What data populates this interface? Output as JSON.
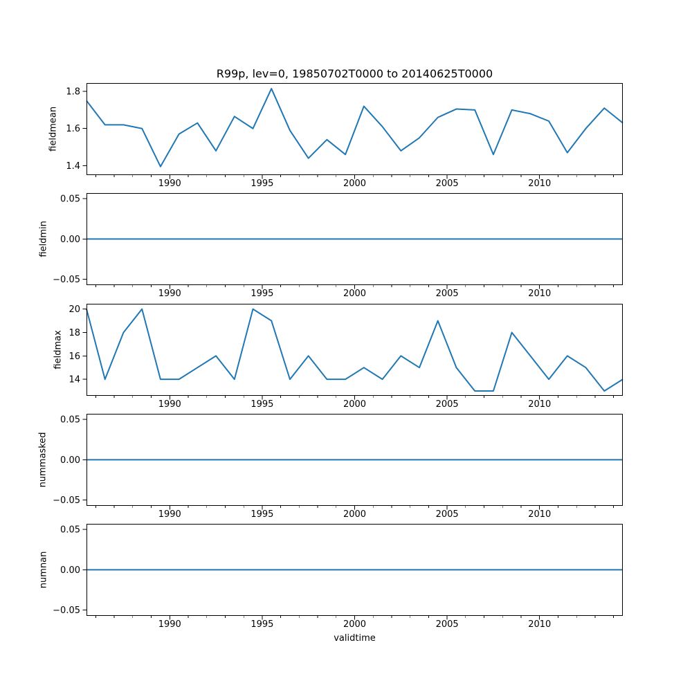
{
  "title": "R99p, lev=0, 19850702T0000 to 20140625T0000",
  "xlabel": "validtime",
  "line_color": "#1f77b4",
  "axis_color": "#000000",
  "chart_data": {
    "type": "line",
    "title": "R99p, lev=0, 19850702T0000 to 20140625T0000",
    "xlabel": "validtime",
    "legend": "none",
    "grid": false,
    "xlim": [
      1985.5,
      2014.5
    ],
    "x_ticks": [
      1990,
      1995,
      2000,
      2005,
      2010
    ],
    "x_tick_labels": [
      "1990",
      "1995",
      "2000",
      "2005",
      "2010"
    ],
    "x_minor_tick_interval": 1,
    "x": [
      1985.5,
      1986.5,
      1987.5,
      1988.5,
      1989.5,
      1990.5,
      1991.5,
      1992.5,
      1993.5,
      1994.5,
      1995.5,
      1996.5,
      1997.5,
      1998.5,
      1999.5,
      2000.5,
      2001.5,
      2002.5,
      2003.5,
      2004.5,
      2005.5,
      2006.5,
      2007.5,
      2008.5,
      2009.5,
      2010.5,
      2011.5,
      2012.5,
      2013.5,
      2014.5
    ],
    "subplots": [
      {
        "ylabel": "fieldmean",
        "y": [
          1.75,
          1.62,
          1.62,
          1.6,
          1.395,
          1.57,
          1.63,
          1.48,
          1.665,
          1.6,
          1.815,
          1.59,
          1.44,
          1.54,
          1.46,
          1.72,
          1.61,
          1.48,
          1.55,
          1.66,
          1.705,
          1.7,
          1.46,
          1.7,
          1.68,
          1.64,
          1.47,
          1.6,
          1.71,
          1.63
        ],
        "ylim": [
          1.35,
          1.845
        ],
        "y_ticks": [
          1.4,
          1.6,
          1.8
        ],
        "y_tick_labels": [
          "1.4",
          "1.6",
          "1.8"
        ]
      },
      {
        "ylabel": "fieldmin",
        "y": [
          0,
          0,
          0,
          0,
          0,
          0,
          0,
          0,
          0,
          0,
          0,
          0,
          0,
          0,
          0,
          0,
          0,
          0,
          0,
          0,
          0,
          0,
          0,
          0,
          0,
          0,
          0,
          0,
          0,
          0
        ],
        "ylim": [
          -0.057,
          0.057
        ],
        "y_ticks": [
          -0.05,
          0,
          0.05
        ],
        "y_tick_labels": [
          "−0.05",
          "0.00",
          "0.05"
        ]
      },
      {
        "ylabel": "fieldmax",
        "y": [
          20,
          14,
          18,
          20,
          14,
          14,
          15,
          16,
          14,
          20,
          19,
          14,
          16,
          14,
          14,
          15,
          14,
          16,
          15,
          19,
          15,
          13,
          13,
          18,
          16,
          14,
          16,
          15,
          13,
          14
        ],
        "ylim": [
          12.6,
          20.45
        ],
        "y_ticks": [
          14,
          16,
          18,
          20
        ],
        "y_tick_labels": [
          "14",
          "16",
          "18",
          "20"
        ]
      },
      {
        "ylabel": "nummasked",
        "y": [
          0,
          0,
          0,
          0,
          0,
          0,
          0,
          0,
          0,
          0,
          0,
          0,
          0,
          0,
          0,
          0,
          0,
          0,
          0,
          0,
          0,
          0,
          0,
          0,
          0,
          0,
          0,
          0,
          0,
          0
        ],
        "ylim": [
          -0.057,
          0.057
        ],
        "y_ticks": [
          -0.05,
          0,
          0.05
        ],
        "y_tick_labels": [
          "−0.05",
          "0.00",
          "0.05"
        ]
      },
      {
        "ylabel": "numnan",
        "y": [
          0,
          0,
          0,
          0,
          0,
          0,
          0,
          0,
          0,
          0,
          0,
          0,
          0,
          0,
          0,
          0,
          0,
          0,
          0,
          0,
          0,
          0,
          0,
          0,
          0,
          0,
          0,
          0,
          0,
          0
        ],
        "ylim": [
          -0.057,
          0.057
        ],
        "y_ticks": [
          -0.05,
          0,
          0.05
        ],
        "y_tick_labels": [
          "−0.05",
          "0.00",
          "0.05"
        ]
      }
    ]
  }
}
